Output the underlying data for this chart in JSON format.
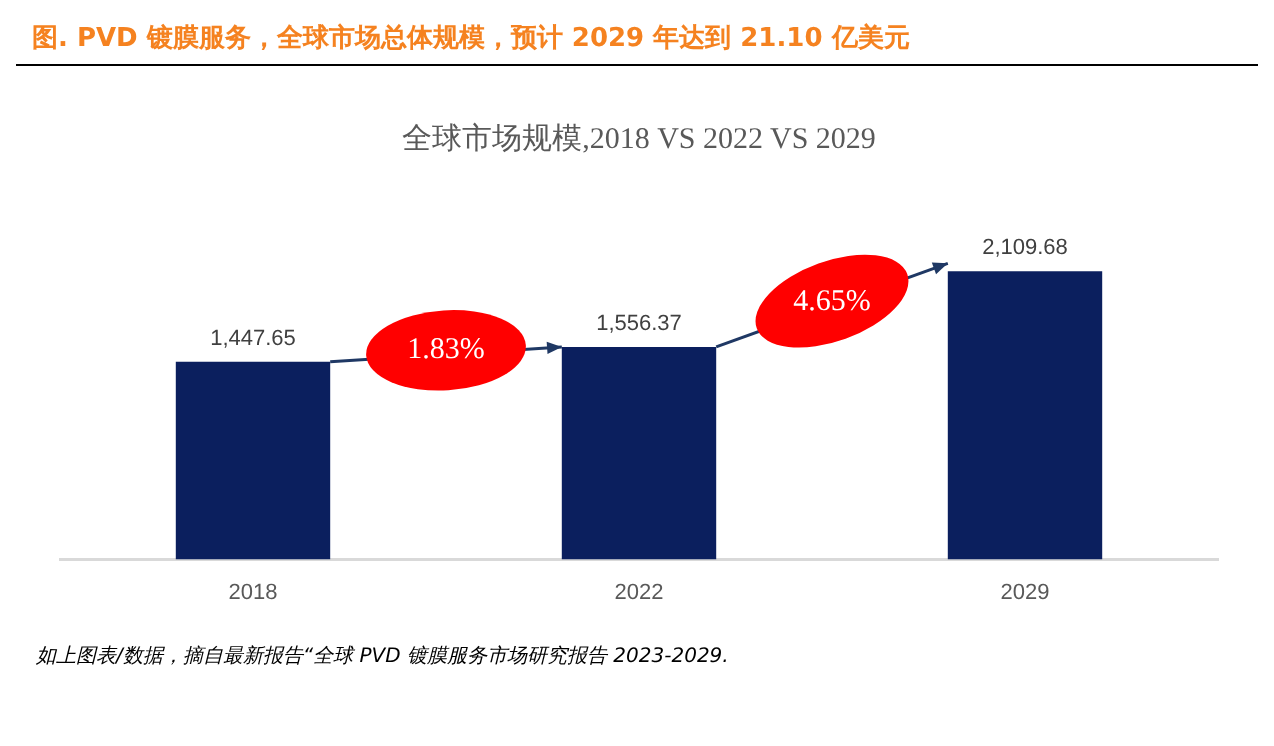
{
  "chart_data": {
    "type": "bar",
    "title": "图.  PVD 镀膜服务，全球市场总体规模，预计 2029 年达到 21.10 亿美元",
    "subtitle": "全球市场规模,2018 VS 2022 VS 2029",
    "categories": [
      "2018",
      "2022",
      "2029"
    ],
    "values": [
      1447.65,
      1556.37,
      2109.68
    ],
    "value_labels": [
      "1,447.65",
      "1,556.37",
      "2,109.68"
    ],
    "color": "#0b1f5e",
    "legend": false,
    "annotations": [
      "1.83%",
      "4.65%",
      "如上图表/数据，摘自最新报告“全球 PVD 镀膜服务市场研究报告 2023-2029."
    ]
  }
}
